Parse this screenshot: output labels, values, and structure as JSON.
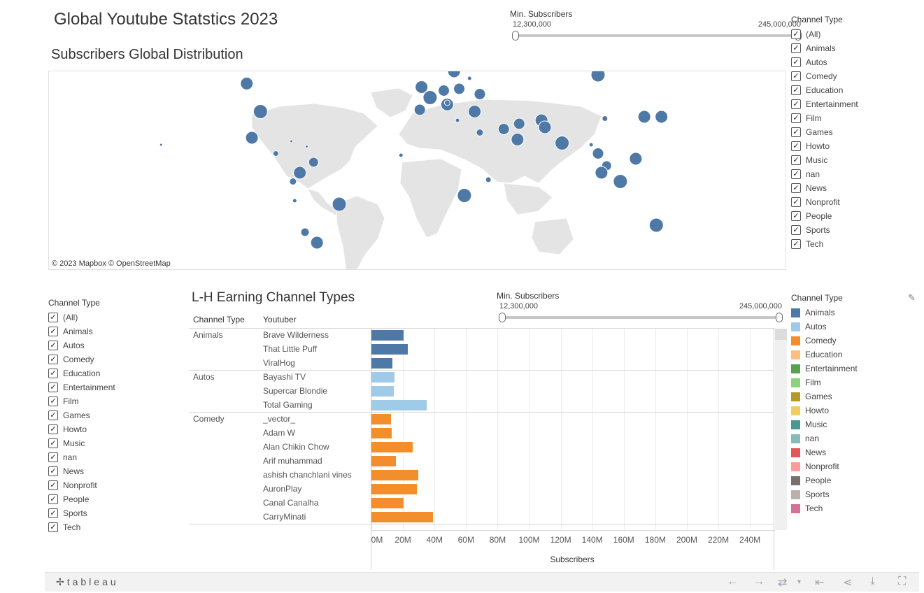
{
  "dashboard": {
    "title": "Global Youtube Statstics 2023",
    "map_title": "Subscribers Global Distribution",
    "bar_title": "L-H Earning Channel Types",
    "map_credit": "© 2023 Mapbox  © OpenStreetMap"
  },
  "slider_top": {
    "label": "Min. Subscribers",
    "min": "12,300,000",
    "max": "245,000,000"
  },
  "slider_bottom": {
    "label": "Min. Subscribers",
    "min": "12,300,000",
    "max": "245,000,000"
  },
  "filter_top": {
    "title": "Channel Type",
    "items": [
      "(All)",
      "Animals",
      "Autos",
      "Comedy",
      "Education",
      "Entertainment",
      "Film",
      "Games",
      "Howto",
      "Music",
      "nan",
      "News",
      "Nonprofit",
      "People",
      "Sports",
      "Tech"
    ]
  },
  "filter_left": {
    "title": "Channel Type",
    "items": [
      "(All)",
      "Animals",
      "Autos",
      "Comedy",
      "Education",
      "Entertainment",
      "Film",
      "Games",
      "Howto",
      "Music",
      "nan",
      "News",
      "Nonprofit",
      "People",
      "Sports",
      "Tech"
    ]
  },
  "legend": {
    "title": "Channel Type",
    "items": [
      {
        "label": "Animals",
        "color": "#4e79a7"
      },
      {
        "label": "Autos",
        "color": "#a0cbe8"
      },
      {
        "label": "Comedy",
        "color": "#f28e2b"
      },
      {
        "label": "Education",
        "color": "#ffbe7d"
      },
      {
        "label": "Entertainment",
        "color": "#59a14f"
      },
      {
        "label": "Film",
        "color": "#8cd17d"
      },
      {
        "label": "Games",
        "color": "#b6992d"
      },
      {
        "label": "Howto",
        "color": "#f1ce63"
      },
      {
        "label": "Music",
        "color": "#499894"
      },
      {
        "label": "nan",
        "color": "#86bcb6"
      },
      {
        "label": "News",
        "color": "#e15759"
      },
      {
        "label": "Nonprofit",
        "color": "#ff9d9a"
      },
      {
        "label": "People",
        "color": "#79706e"
      },
      {
        "label": "Sports",
        "color": "#bab0ac"
      },
      {
        "label": "Tech",
        "color": "#d37295"
      }
    ]
  },
  "chart_data": {
    "type": "bar",
    "orientation": "horizontal",
    "xlabel": "Subscribers",
    "column_headers": [
      "Channel Type",
      "Youtuber"
    ],
    "x_ticks": [
      "0M",
      "20M",
      "40M",
      "60M",
      "80M",
      "100M",
      "120M",
      "140M",
      "160M",
      "180M",
      "200M",
      "220M",
      "240M"
    ],
    "xlim": [
      0,
      255
    ],
    "groups": [
      {
        "type": "Animals",
        "color": "#4e79a7",
        "rows": [
          {
            "youtuber": "Brave Wilderness",
            "value": 20.5
          },
          {
            "youtuber": "That Little Puff",
            "value": 23
          },
          {
            "youtuber": "ViralHog",
            "value": 13.5
          }
        ]
      },
      {
        "type": "Autos",
        "color": "#a0cbe8",
        "rows": [
          {
            "youtuber": "Bayashi TV",
            "value": 14.5
          },
          {
            "youtuber": "Supercar Blondie",
            "value": 14
          },
          {
            "youtuber": "Total Gaming",
            "value": 35
          }
        ]
      },
      {
        "type": "Comedy",
        "color": "#f28e2b",
        "rows": [
          {
            "youtuber": "_vector_",
            "value": 12.3
          },
          {
            "youtuber": "Adam W",
            "value": 12.7
          },
          {
            "youtuber": "Alan Chikin Chow",
            "value": 26
          },
          {
            "youtuber": "Arif muhammad",
            "value": 15.5
          },
          {
            "youtuber": "ashish chanchlani vines",
            "value": 29.5
          },
          {
            "youtuber": "AuronPlay",
            "value": 29
          },
          {
            "youtuber": "Canal Canalha",
            "value": 20.5
          },
          {
            "youtuber": "CarryMinati",
            "value": 39
          }
        ]
      }
    ]
  },
  "map_points": [
    {
      "lon": -105,
      "lat": 55,
      "size": 9
    },
    {
      "lon": -97,
      "lat": 39,
      "size": 10
    },
    {
      "lon": -102,
      "lat": 24,
      "size": 9
    },
    {
      "lon": -88,
      "lat": 15,
      "size": 4
    },
    {
      "lon": -79,
      "lat": 22,
      "size": 2
    },
    {
      "lon": -70,
      "lat": 19,
      "size": 2
    },
    {
      "lon": -66,
      "lat": 10,
      "size": 7
    },
    {
      "lon": -74,
      "lat": 4,
      "size": 9
    },
    {
      "lon": -78,
      "lat": -1,
      "size": 5
    },
    {
      "lon": -77,
      "lat": -12,
      "size": 3
    },
    {
      "lon": -51,
      "lat": -14,
      "size": 10
    },
    {
      "lon": -71,
      "lat": -30,
      "size": 6
    },
    {
      "lon": -64,
      "lat": -36,
      "size": 9
    },
    {
      "lon": -155,
      "lat": 20,
      "size": 2
    },
    {
      "lon": -3,
      "lat": 53,
      "size": 9
    },
    {
      "lon": 2,
      "lat": 47,
      "size": 10
    },
    {
      "lon": -4,
      "lat": 40,
      "size": 8
    },
    {
      "lon": 10,
      "lat": 51,
      "size": 8
    },
    {
      "lon": 12,
      "lat": 43,
      "size": 9
    },
    {
      "lon": 16,
      "lat": 62,
      "size": 9
    },
    {
      "lon": 25,
      "lat": 58,
      "size": 3
    },
    {
      "lon": 19,
      "lat": 52,
      "size": 8
    },
    {
      "lon": 31,
      "lat": 49,
      "size": 8
    },
    {
      "lon": 28,
      "lat": 39,
      "size": 9
    },
    {
      "lon": 31,
      "lat": 27,
      "size": 5
    },
    {
      "lon": 45,
      "lat": 29,
      "size": 8
    },
    {
      "lon": 53,
      "lat": 23,
      "size": 9
    },
    {
      "lon": 54,
      "lat": 32,
      "size": 8
    },
    {
      "lon": 67,
      "lat": 34,
      "size": 9
    },
    {
      "lon": 69,
      "lat": 30,
      "size": 9
    },
    {
      "lon": 79,
      "lat": 21,
      "size": 10
    },
    {
      "lon": 100,
      "lat": 60,
      "size": 10
    },
    {
      "lon": 104,
      "lat": 35,
      "size": 4
    },
    {
      "lon": 127,
      "lat": 36,
      "size": 9
    },
    {
      "lon": 137,
      "lat": 36,
      "size": 9
    },
    {
      "lon": 100,
      "lat": 15,
      "size": 8
    },
    {
      "lon": 96,
      "lat": 20,
      "size": 3
    },
    {
      "lon": 122,
      "lat": 12,
      "size": 9
    },
    {
      "lon": 105,
      "lat": 8,
      "size": 7
    },
    {
      "lon": 102,
      "lat": 4,
      "size": 9
    },
    {
      "lon": 113,
      "lat": -1,
      "size": 10
    },
    {
      "lon": 134,
      "lat": -26,
      "size": 10
    },
    {
      "lon": 36,
      "lat": 0,
      "size": 4
    },
    {
      "lon": 22,
      "lat": -9,
      "size": 10
    },
    {
      "lon": 12,
      "lat": 44,
      "size": 4
    },
    {
      "lon": 18,
      "lat": 34,
      "size": 3
    },
    {
      "lon": -15,
      "lat": 14,
      "size": 3
    }
  ]
}
